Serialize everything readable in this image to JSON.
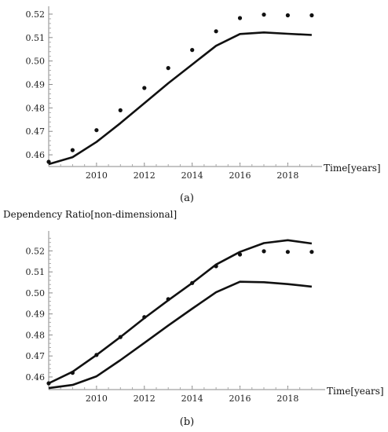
{
  "chart_data": [
    {
      "type": "line",
      "caption": "(a)",
      "ylabel": "",
      "xlabel": "Time[years]",
      "xlim": [
        2008,
        2019.3
      ],
      "ylim": [
        0.455,
        0.522
      ],
      "xticks": [
        2010,
        2012,
        2014,
        2016,
        2018
      ],
      "yticks": [
        0.46,
        0.47,
        0.48,
        0.49,
        0.5,
        0.51,
        0.52
      ],
      "ytick_labels": [
        "0.46",
        "0.47",
        "0.48",
        "0.49",
        "0.50",
        "0.51",
        "0.52"
      ],
      "grid": false,
      "series": [
        {
          "style": "points",
          "x": [
            2008,
            2009,
            2010,
            2011,
            2012,
            2013,
            2014,
            2015,
            2016,
            2017,
            2018,
            2019
          ],
          "values": [
            0.457,
            0.462,
            0.4705,
            0.479,
            0.4885,
            0.497,
            0.5047,
            0.5127,
            0.5183,
            0.5198,
            0.5195,
            0.5195
          ]
        },
        {
          "style": "line",
          "x": [
            2008,
            2009,
            2010,
            2011,
            2012,
            2013,
            2014,
            2015,
            2016,
            2017,
            2018,
            2019
          ],
          "values": [
            0.456,
            0.459,
            0.4655,
            0.4735,
            0.482,
            0.4905,
            0.4985,
            0.5065,
            0.5115,
            0.5122,
            0.5116,
            0.5111
          ]
        }
      ]
    },
    {
      "type": "line",
      "caption": "(b)",
      "ylabel": "Dependency Ratio[non-dimensional]",
      "xlabel": "Time[years]",
      "xlim": [
        2008,
        2019.3
      ],
      "ylim": [
        0.454,
        0.528
      ],
      "xticks": [
        2010,
        2012,
        2014,
        2016,
        2018
      ],
      "yticks": [
        0.46,
        0.47,
        0.48,
        0.49,
        0.5,
        0.51,
        0.52
      ],
      "ytick_labels": [
        "0.46",
        "0.47",
        "0.48",
        "0.49",
        "0.50",
        "0.51",
        "0.52"
      ],
      "grid": false,
      "series": [
        {
          "style": "points",
          "x": [
            2008,
            2009,
            2010,
            2011,
            2012,
            2013,
            2014,
            2015,
            2016,
            2017,
            2018,
            2019
          ],
          "values": [
            0.457,
            0.462,
            0.4705,
            0.479,
            0.4885,
            0.497,
            0.5047,
            0.5127,
            0.5183,
            0.5198,
            0.5195,
            0.5195
          ]
        },
        {
          "style": "line",
          "x": [
            2008,
            2009,
            2010,
            2011,
            2012,
            2013,
            2014,
            2015,
            2016,
            2017,
            2018,
            2019
          ],
          "values": [
            0.457,
            0.4625,
            0.4705,
            0.479,
            0.488,
            0.4965,
            0.5047,
            0.5135,
            0.5195,
            0.5237,
            0.5251,
            0.5235
          ]
        },
        {
          "style": "line",
          "x": [
            2008,
            2009,
            2010,
            2011,
            2012,
            2013,
            2014,
            2015,
            2016,
            2017,
            2018,
            2019
          ],
          "values": [
            0.4547,
            0.4562,
            0.4603,
            0.468,
            0.4762,
            0.4845,
            0.4925,
            0.5003,
            0.5053,
            0.5051,
            0.5042,
            0.503
          ]
        }
      ]
    }
  ]
}
